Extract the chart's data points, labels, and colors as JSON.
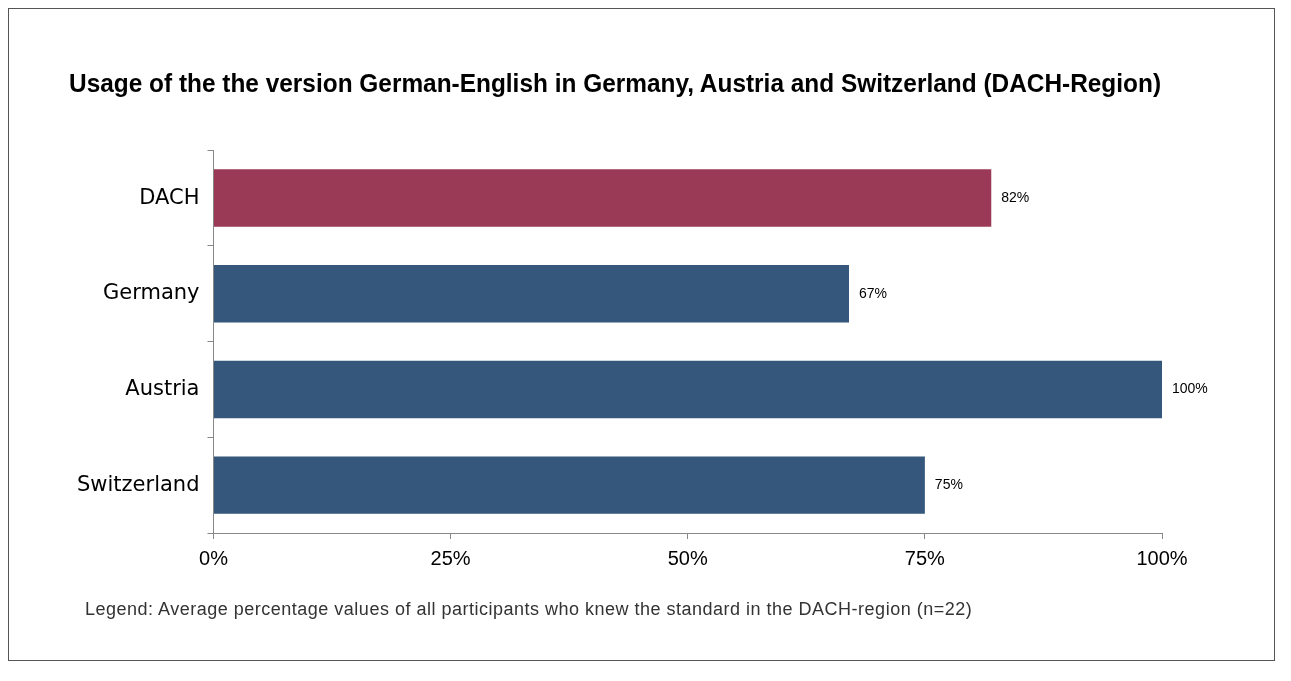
{
  "chart_data": {
    "type": "bar",
    "orientation": "horizontal",
    "title": "Usage of the the version German-English in Germany, Austria and Switzerland (DACH-Region)",
    "categories": [
      "DACH",
      "Germany",
      "Austria",
      "Switzerland"
    ],
    "values": [
      82,
      67,
      100,
      75
    ],
    "colors": [
      "#9b3a56",
      "#34577b",
      "#34577b",
      "#34577b"
    ],
    "value_labels": [
      "82%",
      "67%",
      "100%",
      "75%"
    ],
    "xlim": [
      0,
      100
    ],
    "xticks": [
      {
        "value": 0,
        "label": "0%"
      },
      {
        "value": 25,
        "label": "25%"
      },
      {
        "value": 50,
        "label": "50%"
      },
      {
        "value": 75,
        "label": "75%"
      },
      {
        "value": 100,
        "label": "100%"
      }
    ],
    "grid": false,
    "legend": false,
    "annotations": [
      "Legend: Average  percentage values of all participants who knew the standard in the DACH-region (n=22)"
    ]
  }
}
